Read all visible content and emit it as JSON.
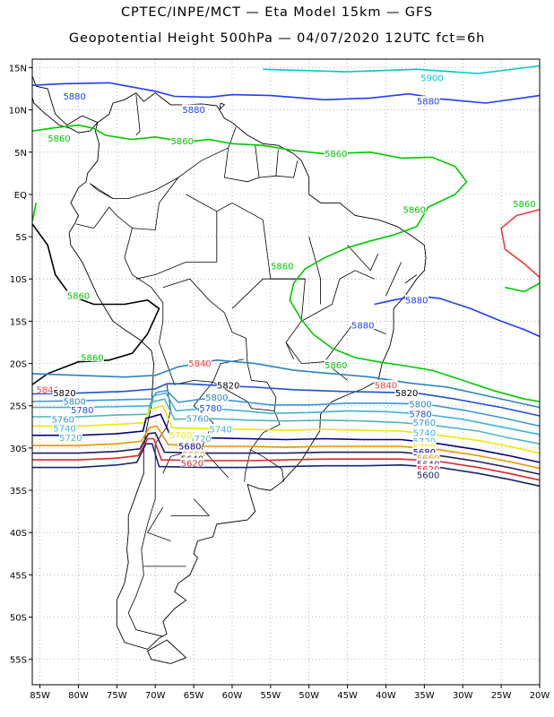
{
  "title_line1": "CPTEC/INPE/MCT —  Eta Model 15km — GFS",
  "title_line2": "Geopotential Height 500hPa — 04/07/2020 12UTC fct=6h",
  "map": {
    "lon_range": [
      -86,
      -20
    ],
    "lat_range": [
      -58,
      16
    ],
    "lon_ticks": [
      -85,
      -80,
      -75,
      -70,
      -65,
      -60,
      -55,
      -50,
      -45,
      -40,
      -35,
      -30,
      -25,
      -20
    ],
    "lon_tick_labels": [
      "85W",
      "80W",
      "75W",
      "70W",
      "65W",
      "60W",
      "55W",
      "50W",
      "45W",
      "40W",
      "35W",
      "30W",
      "25W",
      "20W"
    ],
    "lat_ticks": [
      15,
      10,
      5,
      0,
      -5,
      -10,
      -15,
      -20,
      -25,
      -30,
      -35,
      -40,
      -45,
      -50,
      -55
    ],
    "lat_tick_labels": [
      "15N",
      "10N",
      "5N",
      "EQ",
      "5S",
      "10S",
      "15S",
      "20S",
      "25S",
      "30S",
      "35S",
      "40S",
      "45S",
      "50S",
      "55S"
    ],
    "grid": "dotted",
    "coastline_color": "#000000",
    "border_color": "#000000"
  },
  "contours": [
    {
      "level": "5900",
      "color": "#00c8c8",
      "labels": [
        {
          "lon": -34,
          "lat": 13.8
        }
      ]
    },
    {
      "level": "5880",
      "color": "#1e3cff",
      "labels": [
        {
          "lon": -80.5,
          "lat": 11.6
        },
        {
          "lon": -65,
          "lat": 10
        },
        {
          "lon": -34.5,
          "lat": 11
        },
        {
          "lon": -36,
          "lat": -12.5
        },
        {
          "lon": -43,
          "lat": -15.5
        }
      ]
    },
    {
      "level": "5860",
      "color": "#00c800",
      "labels": [
        {
          "lon": -82.5,
          "lat": 6.6
        },
        {
          "lon": -66.5,
          "lat": 6.3
        },
        {
          "lon": -46.5,
          "lat": 4.8
        },
        {
          "lon": -36.3,
          "lat": -1.8
        },
        {
          "lon": -22,
          "lat": -1.1
        },
        {
          "lon": -53.5,
          "lat": -8.5
        },
        {
          "lon": -80,
          "lat": -12
        },
        {
          "lon": -78.2,
          "lat": -19.3
        },
        {
          "lon": -46.5,
          "lat": -20.2
        }
      ]
    },
    {
      "level": "5840",
      "color": "#f03c3c",
      "labels": [
        {
          "lon": -84,
          "lat": -23.1
        },
        {
          "lon": -64.2,
          "lat": -20
        },
        {
          "lon": -40,
          "lat": -22.6
        }
      ]
    },
    {
      "level": "5820",
      "color": "#000000",
      "labels": [
        {
          "lon": -81.8,
          "lat": -23.5
        },
        {
          "lon": -60.5,
          "lat": -22.6
        },
        {
          "lon": -37.3,
          "lat": -23.5
        }
      ]
    },
    {
      "level": "5800",
      "color": "#2a82be",
      "labels": [
        {
          "lon": -80.5,
          "lat": -24.5
        },
        {
          "lon": -62,
          "lat": -24
        },
        {
          "lon": -35.5,
          "lat": -24.8
        }
      ]
    },
    {
      "level": "5780",
      "color": "#1e50d2",
      "labels": [
        {
          "lon": -79.5,
          "lat": -25.5
        },
        {
          "lon": -62.8,
          "lat": -25.3
        },
        {
          "lon": -35.5,
          "lat": -26
        }
      ]
    },
    {
      "level": "5760",
      "color": "#3c96d2",
      "labels": [
        {
          "lon": -82,
          "lat": -26.6
        },
        {
          "lon": -64.5,
          "lat": -26.5
        },
        {
          "lon": -35,
          "lat": -27
        }
      ]
    },
    {
      "level": "5740",
      "color": "#3cb4dc",
      "labels": [
        {
          "lon": -81.8,
          "lat": -27.7
        },
        {
          "lon": -61.5,
          "lat": -27.8
        },
        {
          "lon": -35,
          "lat": -28.2
        }
      ]
    },
    {
      "level": "5720",
      "color": "#50b4be",
      "labels": [
        {
          "lon": -81,
          "lat": -28.8
        },
        {
          "lon": -64.2,
          "lat": -28.9
        },
        {
          "lon": -35,
          "lat": -29.2
        }
      ]
    },
    {
      "level": "5700",
      "color": "#f0e600",
      "labels": [
        {
          "lon": -66.7,
          "lat": -28.5
        },
        {
          "lon": -35,
          "lat": -29.9
        }
      ]
    },
    {
      "level": "5680",
      "color": "#000080",
      "labels": [
        {
          "lon": -65.5,
          "lat": -29.8
        },
        {
          "lon": -35,
          "lat": -30.5
        }
      ]
    },
    {
      "level": "5660",
      "color": "#e69600",
      "labels": [
        {
          "lon": -65,
          "lat": -30.8
        },
        {
          "lon": -34.5,
          "lat": -31.2
        }
      ]
    },
    {
      "level": "5640",
      "color": "#1e1e64",
      "labels": [
        {
          "lon": -65.2,
          "lat": -31.3
        },
        {
          "lon": -34.5,
          "lat": -31.9
        }
      ]
    },
    {
      "level": "5620",
      "color": "#dc2828",
      "labels": [
        {
          "lon": -65.2,
          "lat": -31.8
        },
        {
          "lon": -34.5,
          "lat": -32.5
        }
      ]
    },
    {
      "level": "5600",
      "color": "#14286e",
      "labels": [
        {
          "lon": -34.5,
          "lat": -33.2
        }
      ]
    }
  ]
}
